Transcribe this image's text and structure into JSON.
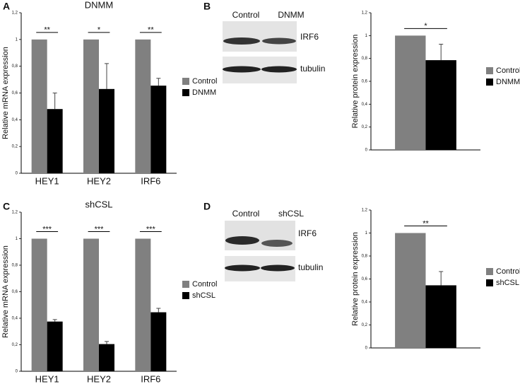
{
  "panel_labels": [
    "A",
    "B",
    "C",
    "D"
  ],
  "blots": [
    {
      "lanes": [
        "Control",
        "DNMM"
      ],
      "bands": [
        "IRF6",
        "tubulin"
      ]
    },
    {
      "lanes": [
        "Control",
        "shCSL"
      ],
      "bands": [
        "IRF6",
        "tubulin"
      ]
    }
  ],
  "chart_data": [
    {
      "type": "bar",
      "title": "DNMM",
      "y_label": "Relative mRNA expression",
      "categories": [
        "HEY1",
        "HEY2",
        "IRF6"
      ],
      "series": [
        {
          "name": "Control",
          "color": "#808080",
          "values": [
            1,
            1,
            1
          ]
        },
        {
          "name": "DNMM",
          "color": "#000000",
          "values": [
            0.48,
            0.63,
            0.655
          ],
          "errors": [
            0.12,
            0.19,
            0.055
          ]
        }
      ],
      "annotations": [
        "**",
        "*",
        "**"
      ],
      "ylim": [
        0,
        1.2
      ],
      "yticks": [
        0,
        {
          "value": 0.2,
          "label": "0,2"
        },
        {
          "value": 0.4,
          "label": "0,4"
        },
        {
          "value": 0.6,
          "label": "0,6"
        },
        {
          "value": 0.8,
          "label": "0,8"
        },
        1,
        {
          "value": 1.2,
          "label": "1,2"
        }
      ]
    },
    {
      "type": "bar",
      "y_label": "Relative protein expression",
      "categories": [
        null
      ],
      "series": [
        {
          "name": "Control",
          "color": "#808080",
          "values": [
            1
          ]
        },
        {
          "name": "DNMM",
          "color": "#000000",
          "values": [
            0.785
          ],
          "errors": [
            0.14
          ]
        }
      ],
      "annotations": [
        "*"
      ],
      "ylim": [
        0,
        1.2
      ],
      "yticks": [
        0,
        {
          "value": 0.2,
          "label": "0,2"
        },
        {
          "value": 0.4,
          "label": "0,4"
        },
        {
          "value": 0.6,
          "label": "0,6"
        },
        {
          "value": 0.8,
          "label": "0,8"
        },
        1,
        {
          "value": 1.2,
          "label": "1,2"
        }
      ]
    },
    {
      "type": "bar",
      "title": "shCSL",
      "y_label": "Relative mRNA expression",
      "categories": [
        "HEY1",
        "HEY2",
        "IRF6"
      ],
      "series": [
        {
          "name": "Control",
          "color": "#808080",
          "values": [
            1,
            1,
            1
          ]
        },
        {
          "name": "shCSL",
          "color": "#000000",
          "values": [
            0.375,
            0.205,
            0.445
          ],
          "errors": [
            0.015,
            0.02,
            0.03
          ]
        }
      ],
      "annotations": [
        "***",
        "***",
        "***"
      ],
      "ylim": [
        0,
        1.2
      ],
      "yticks": [
        0,
        {
          "value": 0.2,
          "label": "0,2"
        },
        {
          "value": 0.4,
          "label": "0,4"
        },
        {
          "value": 0.6,
          "label": "0,6"
        },
        {
          "value": 0.8,
          "label": "0,8"
        },
        1,
        {
          "value": 1.2,
          "label": "1,2"
        }
      ]
    },
    {
      "type": "bar",
      "y_label": "Relative protein expression",
      "categories": [
        null
      ],
      "series": [
        {
          "name": "Control",
          "color": "#808080",
          "values": [
            1
          ]
        },
        {
          "name": "shCSL",
          "color": "#000000",
          "values": [
            0.545
          ],
          "errors": [
            0.12
          ]
        }
      ],
      "annotations": [
        "**"
      ],
      "ylim": [
        0,
        1.2
      ],
      "yticks": [
        0,
        {
          "value": 0.2,
          "label": "0,2"
        },
        {
          "value": 0.4,
          "label": "0,4"
        },
        {
          "value": 0.6,
          "label": "0,6"
        },
        {
          "value": 0.8,
          "label": "0,8"
        },
        1,
        {
          "value": 1.2,
          "label": "1,2"
        }
      ]
    }
  ]
}
